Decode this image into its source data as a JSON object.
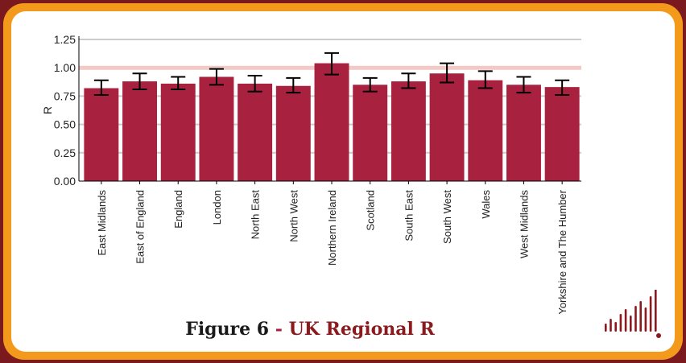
{
  "chart_data": {
    "type": "bar",
    "ylabel": "R",
    "ylim": [
      0,
      1.25
    ],
    "yticks": [
      "0.00",
      "0.25",
      "0.50",
      "0.75",
      "1.00",
      "1.25"
    ],
    "reference_line": 1.0,
    "grid": true,
    "bar_color": "#a8213f",
    "categories": [
      "East Midlands",
      "East of England",
      "England",
      "London",
      "North East",
      "North West",
      "Northern Ireland",
      "Scotland",
      "South East",
      "South West",
      "Wales",
      "West Midlands",
      "Yorkshire and The Humber"
    ],
    "values": [
      0.82,
      0.88,
      0.86,
      0.92,
      0.86,
      0.84,
      1.04,
      0.85,
      0.88,
      0.95,
      0.89,
      0.85,
      0.83
    ],
    "lower": [
      0.76,
      0.81,
      0.81,
      0.85,
      0.79,
      0.78,
      0.94,
      0.79,
      0.82,
      0.87,
      0.82,
      0.78,
      0.76
    ],
    "upper": [
      0.89,
      0.95,
      0.92,
      0.99,
      0.93,
      0.91,
      1.13,
      0.91,
      0.95,
      1.04,
      0.97,
      0.92,
      0.89
    ]
  },
  "caption": {
    "figure": "Figure 6",
    "separator": " - ",
    "title": "UK Regional R"
  },
  "colors": {
    "outer_border": "#7a1a1f",
    "inner_border": "#f39a1c",
    "ref_line": "#f2c9c4",
    "grid": "#cccccc",
    "caption_title": "#8b1a1f",
    "logo": "#8b1a1f"
  },
  "logo_icon": "bar-code-logo-icon"
}
